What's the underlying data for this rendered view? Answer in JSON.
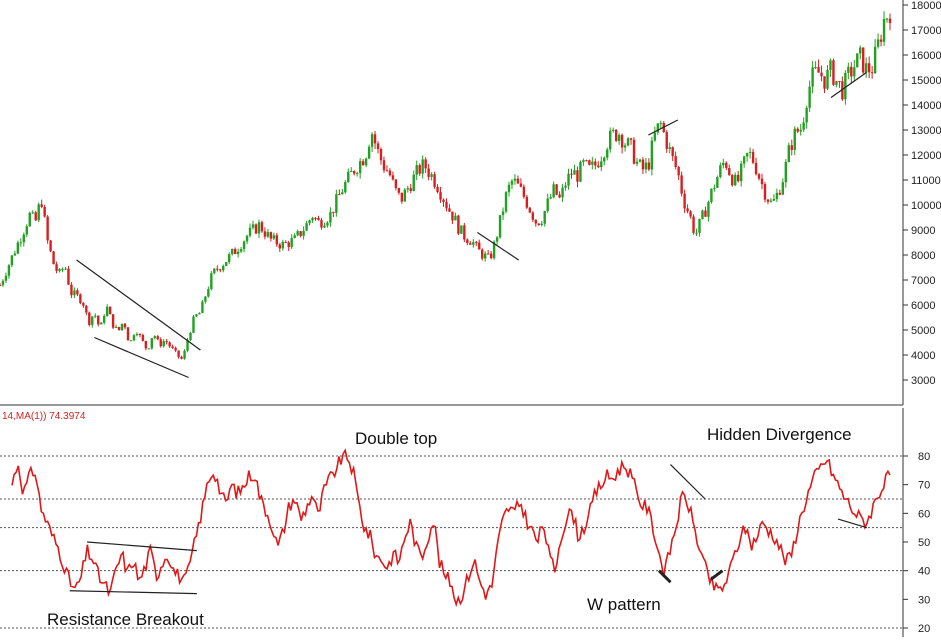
{
  "colors": {
    "up": "#22a022",
    "down": "#d62020",
    "rsi": "#e01818",
    "trend": "#222222",
    "grid": "#555555"
  },
  "indicator_label": "14,MA(1)) 74.3974",
  "annotations": {
    "double_top": "Double top",
    "hidden_divergence": "Hidden Divergence",
    "w_pattern": "W pattern",
    "resistance_breakout": "Resistance Breakout"
  },
  "chart_data": [
    {
      "type": "candlestick",
      "title": "",
      "ylim": [
        2500,
        18200
      ],
      "ytick_labels": [
        "3000",
        "4000",
        "5000",
        "6000",
        "7000",
        "8000",
        "9000",
        "10000",
        "11000",
        "12000",
        "13000",
        "14000",
        "15000",
        "16000",
        "17000",
        "18000"
      ],
      "ytick_values": [
        3000,
        4000,
        5000,
        6000,
        7000,
        8000,
        9000,
        10000,
        11000,
        12000,
        13000,
        14000,
        15000,
        16000,
        17000,
        18000
      ],
      "x_index_range": [
        0,
        100
      ],
      "close_path": [
        [
          0,
          6800
        ],
        [
          2,
          7900
        ],
        [
          4,
          9000
        ],
        [
          5,
          9600
        ],
        [
          6,
          9300
        ],
        [
          7,
          10300
        ],
        [
          8,
          8600
        ],
        [
          9,
          7700
        ],
        [
          10,
          7200
        ],
        [
          11,
          7600
        ],
        [
          12,
          6500
        ],
        [
          14,
          6200
        ],
        [
          15,
          5300
        ],
        [
          16,
          5700
        ],
        [
          17,
          5000
        ],
        [
          18,
          6000
        ],
        [
          19,
          5300
        ],
        [
          20,
          4900
        ],
        [
          21,
          5400
        ],
        [
          22,
          4400
        ],
        [
          23,
          5100
        ],
        [
          24,
          4600
        ],
        [
          25,
          4200
        ],
        [
          26,
          4900
        ],
        [
          27,
          4400
        ],
        [
          28,
          4600
        ],
        [
          30,
          4000
        ],
        [
          31,
          3800
        ],
        [
          32,
          4800
        ],
        [
          33,
          5500
        ],
        [
          34,
          5700
        ],
        [
          35,
          6500
        ],
        [
          36,
          7200
        ],
        [
          37,
          7500
        ],
        [
          38,
          7700
        ],
        [
          40,
          8200
        ],
        [
          42,
          8800
        ],
        [
          44,
          9200
        ],
        [
          46,
          8600
        ],
        [
          48,
          8400
        ],
        [
          50,
          8600
        ],
        [
          52,
          9200
        ],
        [
          53,
          9600
        ],
        [
          54,
          9300
        ],
        [
          56,
          9600
        ],
        [
          58,
          10600
        ],
        [
          60,
          11400
        ],
        [
          62,
          12000
        ],
        [
          63,
          13000
        ],
        [
          64,
          12200
        ],
        [
          65,
          11600
        ],
        [
          66,
          11300
        ],
        [
          67,
          10600
        ],
        [
          68,
          10200
        ],
        [
          70,
          11000
        ],
        [
          71,
          11400
        ],
        [
          72,
          11600
        ],
        [
          74,
          10900
        ],
        [
          75,
          10400
        ],
        [
          76,
          9900
        ],
        [
          77,
          9500
        ],
        [
          78,
          9000
        ],
        [
          79,
          8700
        ],
        [
          80,
          8600
        ],
        [
          81,
          8200
        ],
        [
          82,
          8000
        ],
        [
          83,
          7800
        ],
        [
          84,
          8500
        ],
        [
          85,
          9500
        ],
        [
          86,
          10500
        ],
        [
          87,
          11000
        ],
        [
          88,
          10700
        ],
        [
          89,
          10300
        ],
        [
          90,
          9800
        ],
        [
          91,
          9300
        ],
        [
          92,
          9500
        ],
        [
          93,
          10100
        ],
        [
          94,
          10600
        ],
        [
          95,
          10200
        ],
        [
          96,
          10900
        ],
        [
          97,
          11300
        ],
        [
          98,
          11200
        ],
        [
          99,
          11600
        ],
        [
          100,
          11400
        ],
        [
          101,
          11600
        ],
        [
          102,
          12000
        ],
        [
          103,
          12500
        ],
        [
          104,
          12800
        ],
        [
          105,
          12900
        ],
        [
          106,
          12500
        ],
        [
          107,
          12300
        ],
        [
          108,
          11700
        ],
        [
          109,
          11400
        ],
        [
          110,
          11600
        ],
        [
          111,
          12700
        ],
        [
          112,
          13300
        ],
        [
          113,
          12600
        ],
        [
          114,
          11900
        ],
        [
          115,
          11300
        ],
        [
          116,
          10200
        ],
        [
          117,
          9600
        ],
        [
          118,
          8800
        ],
        [
          119,
          9400
        ],
        [
          120,
          10000
        ],
        [
          121,
          10700
        ],
        [
          122,
          11300
        ],
        [
          123,
          11800
        ],
        [
          124,
          11200
        ],
        [
          125,
          10800
        ],
        [
          126,
          11500
        ],
        [
          127,
          12100
        ],
        [
          128,
          11700
        ],
        [
          129,
          11000
        ],
        [
          130,
          10400
        ],
        [
          131,
          10000
        ],
        [
          132,
          10500
        ],
        [
          133,
          11200
        ],
        [
          134,
          12300
        ],
        [
          135,
          12900
        ],
        [
          136,
          13100
        ],
        [
          137,
          14500
        ],
        [
          138,
          15200
        ],
        [
          139,
          15300
        ],
        [
          140,
          15000
        ],
        [
          141,
          15400
        ],
        [
          142,
          14900
        ],
        [
          143,
          14600
        ],
        [
          144,
          15200
        ],
        [
          145,
          15600
        ],
        [
          146,
          15900
        ],
        [
          147,
          15400
        ],
        [
          148,
          15500
        ],
        [
          149,
          16400
        ],
        [
          150,
          17400
        ],
        [
          151,
          17800
        ]
      ],
      "trend_lines": [
        {
          "name": "falling-wedge-top",
          "points": [
            [
              13,
              7800
            ],
            [
              34,
              4200
            ]
          ]
        },
        {
          "name": "falling-wedge-bottom",
          "points": [
            [
              16,
              4700
            ],
            [
              32,
              3100
            ]
          ]
        },
        {
          "name": "w-top-line",
          "points": [
            [
              110,
              12800
            ],
            [
              115,
              13400
            ]
          ]
        },
        {
          "name": "w-bottom-line",
          "points": [
            [
              81,
              8900
            ],
            [
              88,
              7800
            ]
          ]
        },
        {
          "name": "hidden-div-line",
          "points": [
            [
              141,
              14300
            ],
            [
              147,
              15300
            ]
          ]
        }
      ]
    },
    {
      "type": "line",
      "title": "",
      "ylim": [
        18,
        90
      ],
      "ytick_labels": [
        "20",
        "30",
        "40",
        "50",
        "60",
        "70",
        "80"
      ],
      "ytick_values": [
        20,
        30,
        40,
        50,
        60,
        70,
        80
      ],
      "reference_lines": [
        80,
        65,
        55,
        40,
        20
      ],
      "x_index_range": [
        0,
        100
      ],
      "rsi_path": [
        [
          0,
          70
        ],
        [
          1,
          78
        ],
        [
          2,
          67
        ],
        [
          3,
          73
        ],
        [
          4,
          75
        ],
        [
          5,
          62
        ],
        [
          6,
          57
        ],
        [
          7,
          52
        ],
        [
          8,
          48
        ],
        [
          9,
          42
        ],
        [
          10,
          36
        ],
        [
          11,
          33
        ],
        [
          12,
          38
        ],
        [
          13,
          47
        ],
        [
          14,
          44
        ],
        [
          15,
          38
        ],
        [
          16,
          35
        ],
        [
          17,
          32
        ],
        [
          18,
          40
        ],
        [
          19,
          46
        ],
        [
          20,
          39
        ],
        [
          21,
          44
        ],
        [
          22,
          36
        ],
        [
          23,
          41
        ],
        [
          24,
          47
        ],
        [
          25,
          38
        ],
        [
          26,
          43
        ],
        [
          27,
          46
        ],
        [
          28,
          40
        ],
        [
          29,
          38
        ],
        [
          30,
          36
        ],
        [
          31,
          44
        ],
        [
          32,
          53
        ],
        [
          33,
          62
        ],
        [
          34,
          72
        ],
        [
          35,
          75
        ],
        [
          36,
          68
        ],
        [
          37,
          63
        ],
        [
          38,
          70
        ],
        [
          39,
          67
        ],
        [
          40,
          69
        ],
        [
          41,
          73
        ],
        [
          42,
          74
        ],
        [
          43,
          65
        ],
        [
          44,
          61
        ],
        [
          45,
          56
        ],
        [
          46,
          48
        ],
        [
          47,
          54
        ],
        [
          48,
          63
        ],
        [
          49,
          65
        ],
        [
          50,
          58
        ],
        [
          51,
          62
        ],
        [
          52,
          67
        ],
        [
          53,
          59
        ],
        [
          54,
          68
        ],
        [
          55,
          72
        ],
        [
          56,
          75
        ],
        [
          57,
          79
        ],
        [
          58,
          80
        ],
        [
          59,
          75
        ],
        [
          60,
          64
        ],
        [
          61,
          55
        ],
        [
          62,
          52
        ],
        [
          63,
          45
        ],
        [
          64,
          44
        ],
        [
          65,
          41
        ],
        [
          66,
          46
        ],
        [
          67,
          43
        ],
        [
          68,
          52
        ],
        [
          69,
          57
        ],
        [
          70,
          48
        ],
        [
          71,
          45
        ],
        [
          72,
          52
        ],
        [
          73,
          58
        ],
        [
          74,
          43
        ],
        [
          75,
          38
        ],
        [
          76,
          36
        ],
        [
          77,
          29
        ],
        [
          78,
          32
        ],
        [
          79,
          38
        ],
        [
          80,
          44
        ],
        [
          81,
          36
        ],
        [
          82,
          32
        ],
        [
          83,
          34
        ],
        [
          84,
          48
        ],
        [
          85,
          58
        ],
        [
          86,
          62
        ],
        [
          87,
          60
        ],
        [
          88,
          64
        ],
        [
          89,
          58
        ],
        [
          90,
          54
        ],
        [
          91,
          50
        ],
        [
          92,
          57
        ],
        [
          93,
          45
        ],
        [
          94,
          40
        ],
        [
          95,
          52
        ],
        [
          96,
          58
        ],
        [
          97,
          61
        ],
        [
          98,
          52
        ],
        [
          99,
          55
        ],
        [
          100,
          60
        ],
        [
          101,
          67
        ],
        [
          102,
          70
        ],
        [
          103,
          73
        ],
        [
          104,
          72
        ],
        [
          105,
          75
        ],
        [
          106,
          77
        ],
        [
          107,
          74
        ],
        [
          108,
          68
        ],
        [
          109,
          63
        ],
        [
          110,
          62
        ],
        [
          111,
          55
        ],
        [
          112,
          46
        ],
        [
          113,
          39
        ],
        [
          114,
          48
        ],
        [
          115,
          56
        ],
        [
          116,
          66
        ],
        [
          117,
          64
        ],
        [
          118,
          56
        ],
        [
          119,
          48
        ],
        [
          120,
          41
        ],
        [
          121,
          36
        ],
        [
          122,
          33
        ],
        [
          123,
          34
        ],
        [
          124,
          38
        ],
        [
          125,
          45
        ],
        [
          126,
          51
        ],
        [
          127,
          55
        ],
        [
          128,
          49
        ],
        [
          129,
          52
        ],
        [
          130,
          57
        ],
        [
          131,
          54
        ],
        [
          132,
          52
        ],
        [
          133,
          48
        ],
        [
          134,
          43
        ],
        [
          135,
          46
        ],
        [
          136,
          55
        ],
        [
          137,
          62
        ],
        [
          138,
          68
        ],
        [
          139,
          73
        ],
        [
          140,
          76
        ],
        [
          141,
          79
        ],
        [
          142,
          74
        ],
        [
          143,
          70
        ],
        [
          144,
          66
        ],
        [
          145,
          63
        ],
        [
          146,
          60
        ],
        [
          147,
          58
        ],
        [
          148,
          57
        ],
        [
          149,
          62
        ],
        [
          150,
          67
        ],
        [
          151,
          70
        ],
        [
          152,
          74
        ]
      ],
      "trend_lines": [
        {
          "name": "resistance-top",
          "points": [
            [
              13,
              50
            ],
            [
              32,
              47
            ]
          ]
        },
        {
          "name": "resistance-bottom",
          "points": [
            [
              10,
              33
            ],
            [
              32,
              32
            ]
          ]
        },
        {
          "name": "w-low-1",
          "points": [
            [
              112,
              40
            ],
            [
              114,
              36
            ]
          ]
        },
        {
          "name": "w-low-2",
          "points": [
            [
              121,
              37
            ],
            [
              123,
              40
            ]
          ]
        },
        {
          "name": "hidden-div-top",
          "points": [
            [
              114,
              77
            ],
            [
              120,
              65
            ]
          ]
        },
        {
          "name": "hidden-div-bottom",
          "points": [
            [
              143,
              58
            ],
            [
              148,
              55
            ]
          ]
        }
      ]
    }
  ]
}
